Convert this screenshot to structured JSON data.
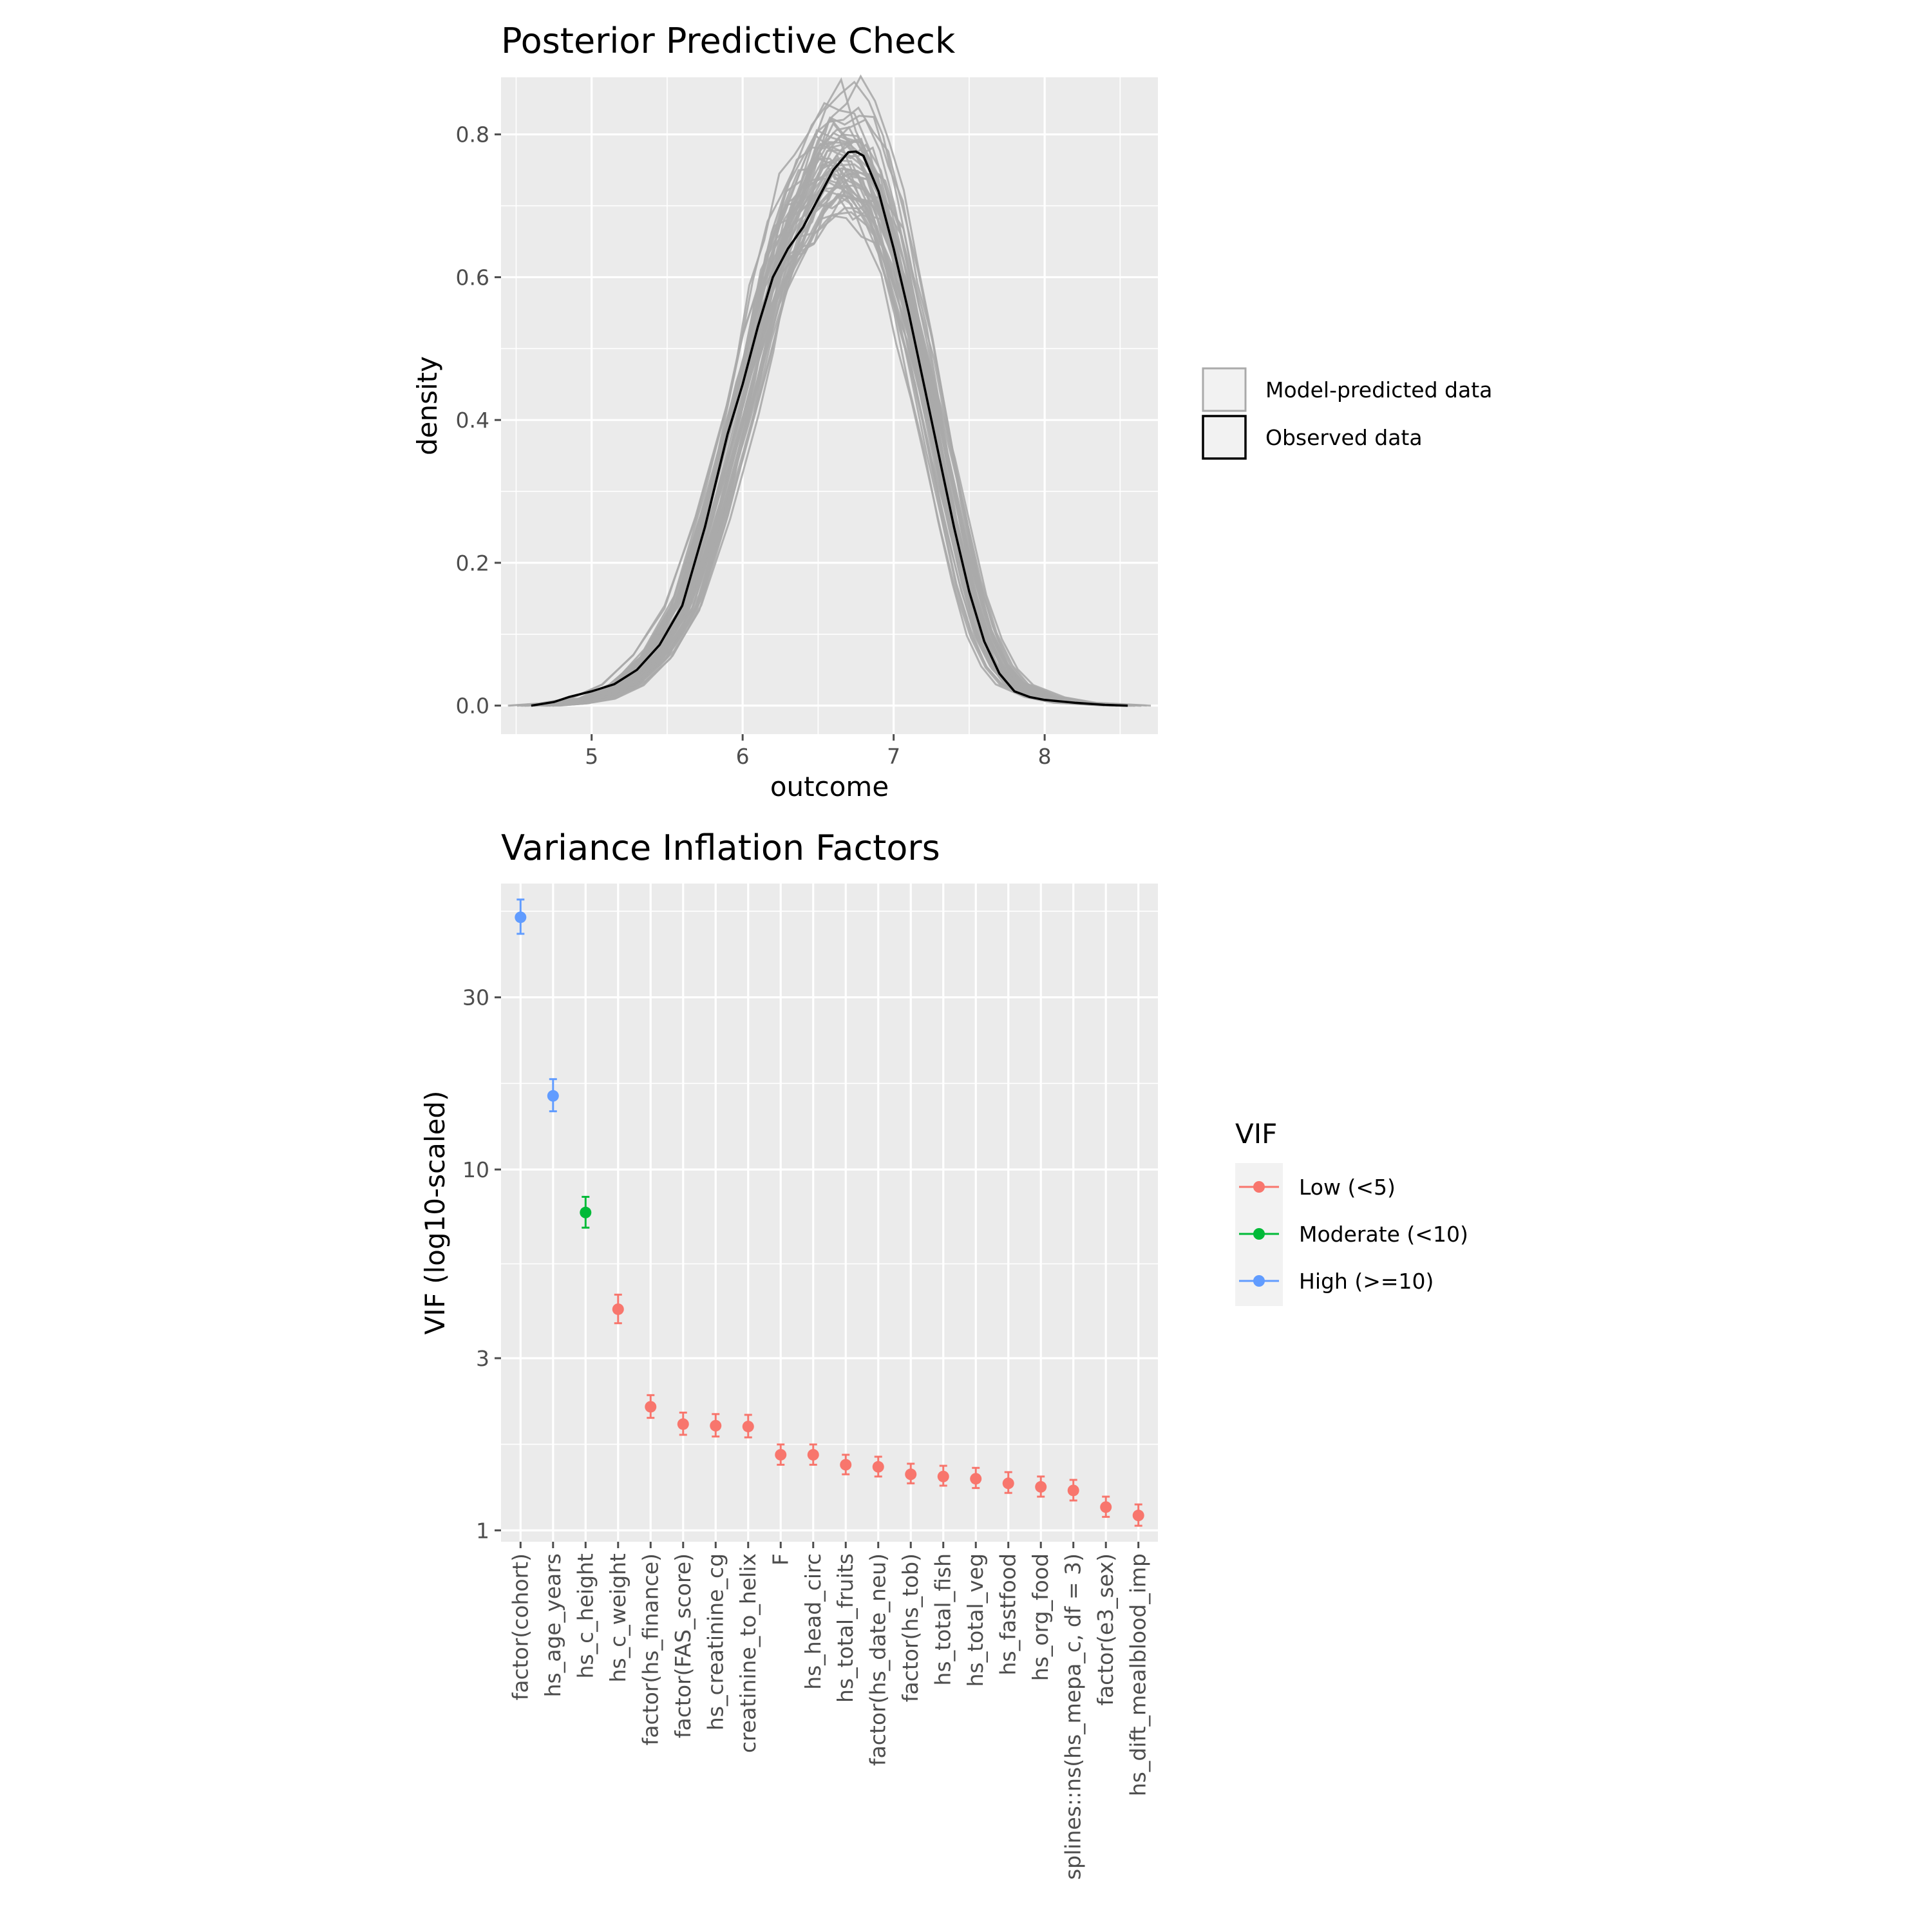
{
  "colors": {
    "panel_bg": "#ebebeb",
    "grid": "#ffffff",
    "tick": "#4d4d4d",
    "predicted": "#aaaaaa",
    "observed": "#000000"
  },
  "chart_data": [
    {
      "type": "line",
      "title": "Posterior Predictive Check",
      "xlabel": "outcome",
      "ylabel": "density",
      "xlim": [
        4.4,
        8.75
      ],
      "ylim": [
        -0.04,
        0.88
      ],
      "xticks": [
        5,
        6,
        7,
        8
      ],
      "yticks": [
        0.0,
        0.2,
        0.4,
        0.6,
        0.8
      ],
      "ytick_labels": [
        "0.0",
        "0.2",
        "0.4",
        "0.6",
        "0.8"
      ],
      "grid": true,
      "legend_position": "right",
      "legend": [
        "Model-predicted data",
        "Observed data"
      ],
      "predicted_series_count": 50,
      "series": [
        {
          "name": "Observed data",
          "color": "#000000",
          "x": [
            4.6,
            4.75,
            4.85,
            5.0,
            5.15,
            5.3,
            5.45,
            5.6,
            5.75,
            5.9,
            6.0,
            6.1,
            6.2,
            6.3,
            6.4,
            6.5,
            6.6,
            6.7,
            6.75,
            6.8,
            6.9,
            7.0,
            7.1,
            7.2,
            7.3,
            7.4,
            7.5,
            7.6,
            7.7,
            7.8,
            7.9,
            8.0,
            8.2,
            8.4,
            8.55
          ],
          "y": [
            0.0,
            0.005,
            0.012,
            0.02,
            0.03,
            0.05,
            0.085,
            0.14,
            0.25,
            0.38,
            0.45,
            0.53,
            0.6,
            0.64,
            0.67,
            0.71,
            0.75,
            0.775,
            0.776,
            0.77,
            0.72,
            0.64,
            0.55,
            0.45,
            0.35,
            0.25,
            0.16,
            0.09,
            0.045,
            0.02,
            0.012,
            0.008,
            0.004,
            0.001,
            0.0
          ]
        },
        {
          "name": "Model-predicted data",
          "color": "#aaaaaa",
          "x": [
            4.6,
            4.8,
            5.0,
            5.2,
            5.4,
            5.6,
            5.8,
            6.0,
            6.1,
            6.2,
            6.3,
            6.4,
            6.5,
            6.6,
            6.7,
            6.8,
            6.9,
            7.0,
            7.1,
            7.2,
            7.3,
            7.4,
            7.5,
            7.6,
            7.7,
            7.8,
            8.0,
            8.2,
            8.55
          ],
          "y": [
            0.0,
            0.003,
            0.01,
            0.03,
            0.07,
            0.14,
            0.27,
            0.43,
            0.52,
            0.6,
            0.66,
            0.7,
            0.74,
            0.76,
            0.76,
            0.74,
            0.7,
            0.63,
            0.55,
            0.46,
            0.36,
            0.26,
            0.17,
            0.1,
            0.055,
            0.03,
            0.012,
            0.004,
            0.0
          ]
        }
      ]
    },
    {
      "type": "scatter",
      "title": "Variance Inflation Factors",
      "xlabel": "",
      "ylabel": "VIF (log10-scaled)",
      "y_scale": "log10",
      "ylim": [
        0.93,
        62
      ],
      "yticks": [
        1,
        3,
        10,
        30
      ],
      "ytick_labels": [
        "1",
        "3",
        "10",
        "30"
      ],
      "grid": true,
      "legend_title": "VIF",
      "legend_position": "right",
      "legend": [
        {
          "label": "Low (<5)",
          "color": "#f8766d"
        },
        {
          "label": "Moderate (<10)",
          "color": "#00ba38"
        },
        {
          "label": "High (>=10)",
          "color": "#619cff"
        }
      ],
      "categories": [
        "factor(cohort)",
        "hs_age_years",
        "hs_c_height",
        "hs_c_weight",
        "factor(hs_finance)",
        "factor(FAS_score)",
        "hs_creatinine_cg",
        "creatinine_to_helix",
        "F",
        "hs_head_circ",
        "hs_total_fruits",
        "factor(hs_date_neu)",
        "factor(hs_tob)",
        "hs_total_fish",
        "hs_total_veg",
        "hs_fastfood",
        "hs_org_food",
        "splines::ns(hs_mepa_c, df = 3)",
        "factor(e3_sex)",
        "hs_dift_mealblood_imp"
      ],
      "points": [
        {
          "vif": 50.0,
          "lo": 45.0,
          "hi": 56.0,
          "group": "High (>=10)"
        },
        {
          "vif": 16.0,
          "lo": 14.5,
          "hi": 17.8,
          "group": "High (>=10)"
        },
        {
          "vif": 7.6,
          "lo": 6.9,
          "hi": 8.4,
          "group": "Moderate (<10)"
        },
        {
          "vif": 4.1,
          "lo": 3.75,
          "hi": 4.5,
          "group": "Low (<5)"
        },
        {
          "vif": 2.2,
          "lo": 2.05,
          "hi": 2.37,
          "group": "Low (<5)"
        },
        {
          "vif": 1.97,
          "lo": 1.84,
          "hi": 2.12,
          "group": "Low (<5)"
        },
        {
          "vif": 1.95,
          "lo": 1.82,
          "hi": 2.1,
          "group": "Low (<5)"
        },
        {
          "vif": 1.94,
          "lo": 1.81,
          "hi": 2.09,
          "group": "Low (<5)"
        },
        {
          "vif": 1.62,
          "lo": 1.52,
          "hi": 1.73,
          "group": "Low (<5)"
        },
        {
          "vif": 1.62,
          "lo": 1.52,
          "hi": 1.73,
          "group": "Low (<5)"
        },
        {
          "vif": 1.52,
          "lo": 1.43,
          "hi": 1.62,
          "group": "Low (<5)"
        },
        {
          "vif": 1.5,
          "lo": 1.41,
          "hi": 1.6,
          "group": "Low (<5)"
        },
        {
          "vif": 1.43,
          "lo": 1.35,
          "hi": 1.53,
          "group": "Low (<5)"
        },
        {
          "vif": 1.41,
          "lo": 1.33,
          "hi": 1.51,
          "group": "Low (<5)"
        },
        {
          "vif": 1.39,
          "lo": 1.31,
          "hi": 1.49,
          "group": "Low (<5)"
        },
        {
          "vif": 1.35,
          "lo": 1.27,
          "hi": 1.45,
          "group": "Low (<5)"
        },
        {
          "vif": 1.32,
          "lo": 1.24,
          "hi": 1.41,
          "group": "Low (<5)"
        },
        {
          "vif": 1.29,
          "lo": 1.21,
          "hi": 1.38,
          "group": "Low (<5)"
        },
        {
          "vif": 1.16,
          "lo": 1.09,
          "hi": 1.24,
          "group": "Low (<5)"
        },
        {
          "vif": 1.1,
          "lo": 1.03,
          "hi": 1.18,
          "group": "Low (<5)"
        }
      ]
    }
  ]
}
